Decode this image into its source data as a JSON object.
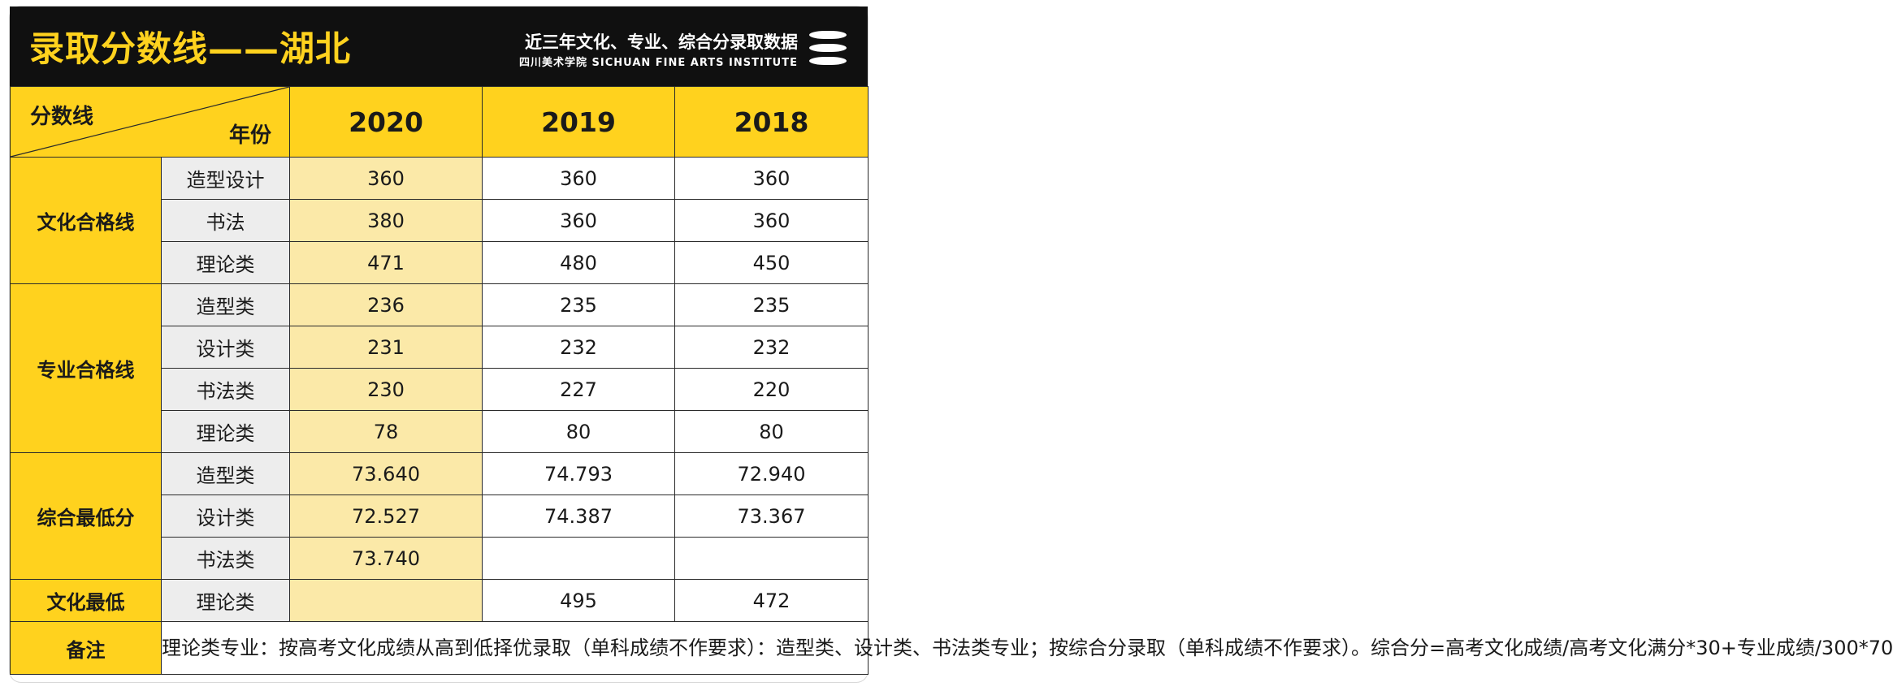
{
  "header": {
    "title": "录取分数线——湖北",
    "subtitle": "近三年文化、专业、综合分录取数据",
    "institute": "四川美术学院 SICHUAN FINE ARTS INSTITUTE"
  },
  "table": {
    "corner_row_label": "分数线",
    "corner_col_label": "年份",
    "years": [
      "2020",
      "2019",
      "2018"
    ],
    "groups": {
      "culture": "文化合格线",
      "major": "专业合格线",
      "composite": "综合最低分",
      "culture_min": "文化最低"
    },
    "rows": [
      {
        "sub": "造型设计",
        "v": [
          "360",
          "360",
          "360"
        ]
      },
      {
        "sub": "书法",
        "v": [
          "380",
          "360",
          "360"
        ]
      },
      {
        "sub": "理论类",
        "v": [
          "471",
          "480",
          "450"
        ]
      },
      {
        "sub": "造型类",
        "v": [
          "236",
          "235",
          "235"
        ]
      },
      {
        "sub": "设计类",
        "v": [
          "231",
          "232",
          "232"
        ]
      },
      {
        "sub": "书法类",
        "v": [
          "230",
          "227",
          "220"
        ]
      },
      {
        "sub": "理论类",
        "v": [
          "78",
          "80",
          "80"
        ]
      },
      {
        "sub": "造型类",
        "v": [
          "73.640",
          "74.793",
          "72.940"
        ]
      },
      {
        "sub": "设计类",
        "v": [
          "72.527",
          "74.387",
          "73.367"
        ]
      },
      {
        "sub": "书法类",
        "v": [
          "73.740",
          "",
          ""
        ]
      },
      {
        "sub": "理论类",
        "v": [
          "",
          "495",
          "472"
        ]
      }
    ],
    "note_label": "备注",
    "note_text": "理论类专业：按高考文化成绩从高到低择优录取（单科成绩不作要求）：造型类、设计类、书法类专业；按综合分录取（单科成绩不作要求）。综合分=高考文化成绩/高考文化满分*30+专业成绩/300*70"
  }
}
